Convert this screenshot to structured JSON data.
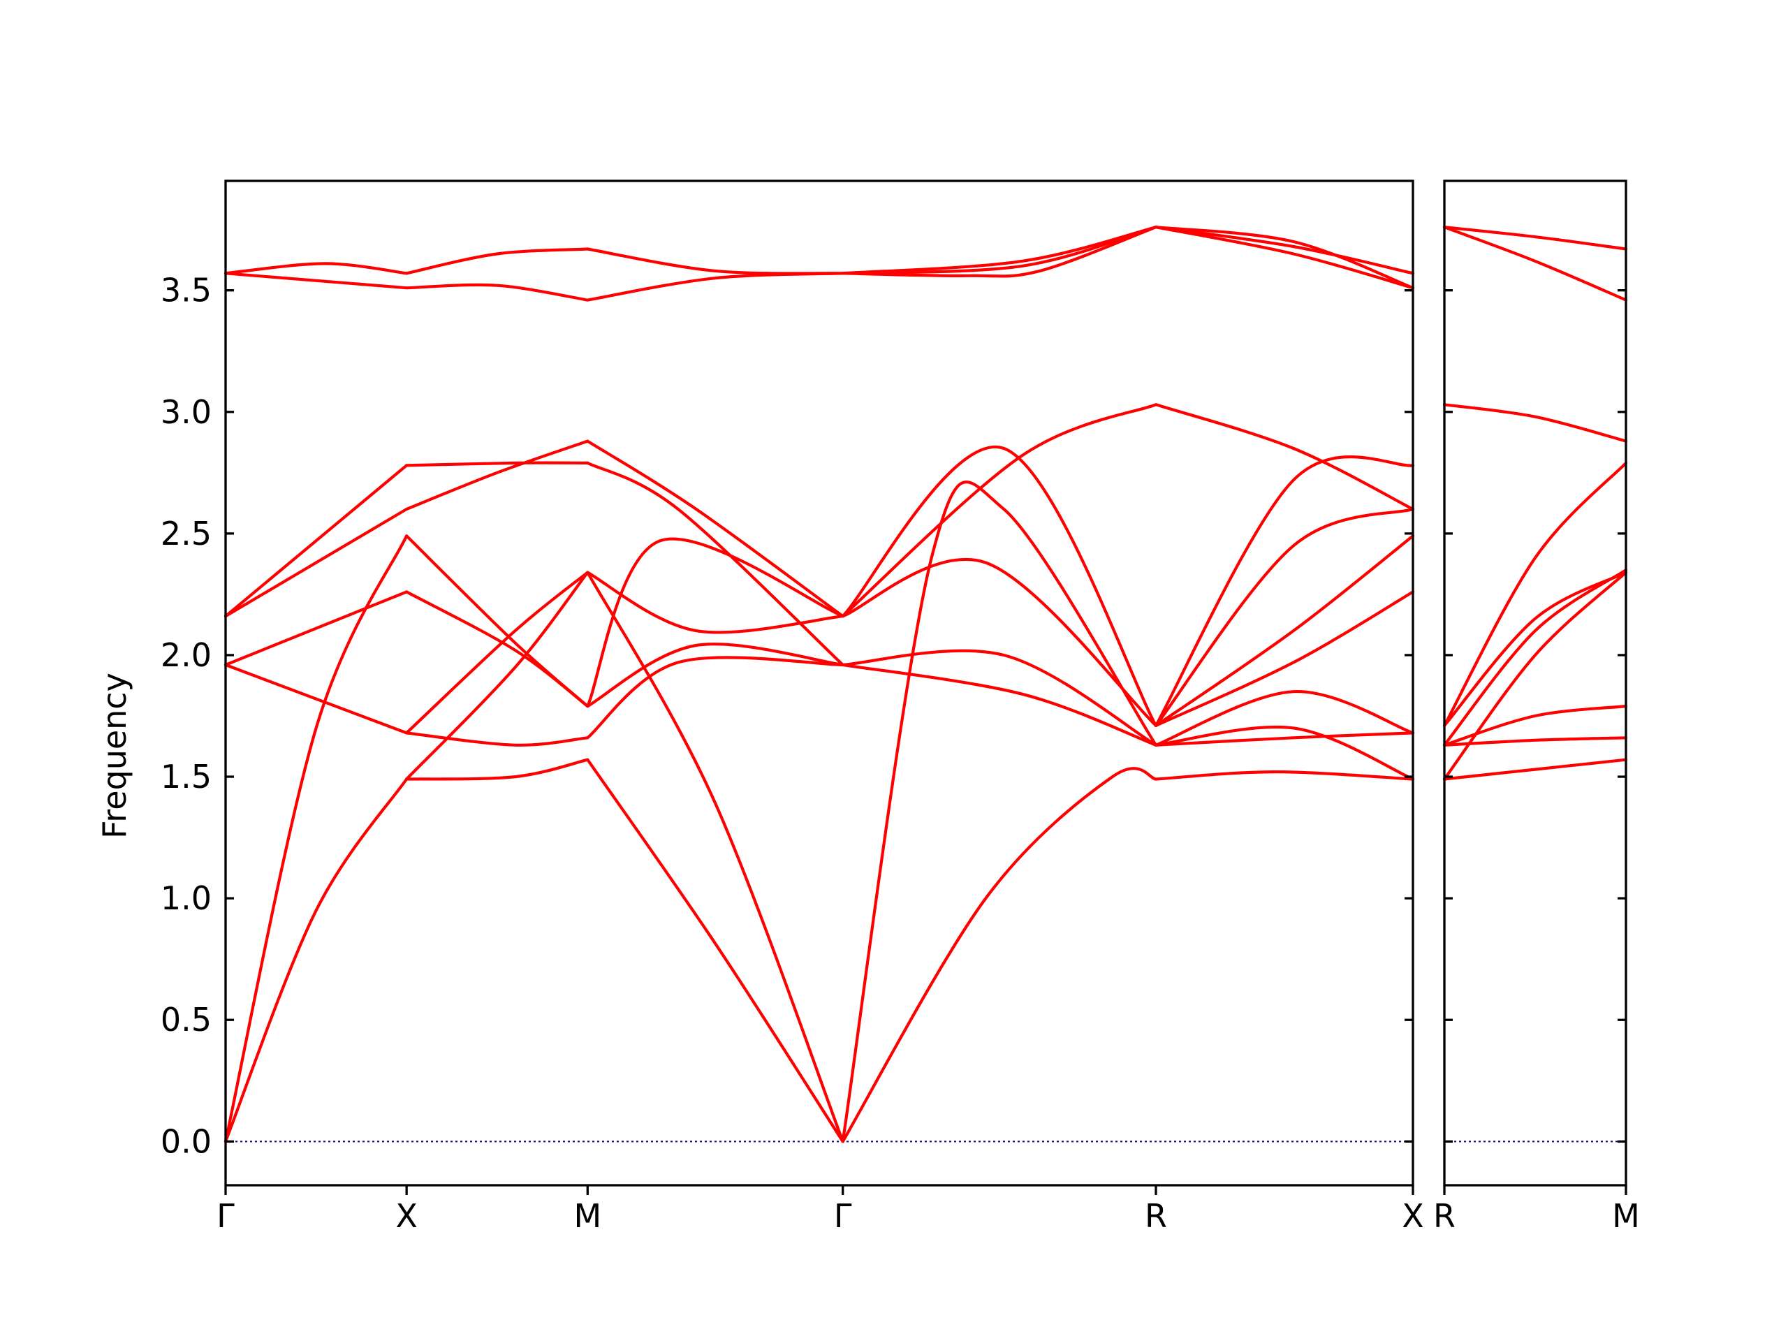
{
  "chart_data": {
    "type": "line",
    "ylabel": "Frequency",
    "ylim": [
      -0.18,
      3.95
    ],
    "yticks": [
      "0.0",
      "0.5",
      "1.0",
      "1.5",
      "2.0",
      "2.5",
      "3.0",
      "3.5"
    ],
    "ytick_values": [
      0.0,
      0.5,
      1.0,
      1.5,
      2.0,
      2.5,
      3.0,
      3.5
    ],
    "colors": {
      "band": "#ff0000",
      "zero_line": "#00008b",
      "axes": "#000000"
    },
    "zero_line": 0.0,
    "panels": [
      {
        "name": "main",
        "xlim": [
          0,
          6.56
        ],
        "ticks": [
          {
            "label": "Γ",
            "x": 0
          },
          {
            "label": "X",
            "x": 1.0
          },
          {
            "label": "M",
            "x": 2.0
          },
          {
            "label": "Γ",
            "x": 3.41
          },
          {
            "label": "R",
            "x": 5.14
          },
          {
            "label": "X",
            "x": 6.56
          }
        ],
        "series": [
          {
            "x": [
              0,
              0.5,
              1.0
            ],
            "y": [
              0,
              0.95,
              1.49
            ]
          },
          {
            "x": [
              0,
              0.5,
              1.0
            ],
            "y": [
              0,
              1.7,
              2.49
            ]
          },
          {
            "x": [
              0,
              1.0
            ],
            "y": [
              1.96,
              1.68
            ]
          },
          {
            "x": [
              0,
              1.0
            ],
            "y": [
              1.96,
              2.26
            ]
          },
          {
            "x": [
              0,
              1.0
            ],
            "y": [
              2.16,
              2.6
            ]
          },
          {
            "x": [
              0,
              1.0
            ],
            "y": [
              2.16,
              2.78
            ]
          },
          {
            "x": [
              0,
              1.0
            ],
            "y": [
              3.57,
              3.51
            ]
          },
          {
            "x": [
              0,
              0.55,
              1.0
            ],
            "y": [
              3.57,
              3.61,
              3.57
            ]
          },
          {
            "x": [
              1.0,
              1.6,
              2.0
            ],
            "y": [
              1.49,
              1.5,
              1.57
            ]
          },
          {
            "x": [
              1.0,
              1.6,
              2.0
            ],
            "y": [
              1.49,
              1.95,
              2.34
            ]
          },
          {
            "x": [
              1.0,
              1.6,
              2.0
            ],
            "y": [
              1.68,
              1.63,
              1.66
            ]
          },
          {
            "x": [
              1.0,
              1.6,
              2.0
            ],
            "y": [
              1.68,
              2.1,
              2.34
            ]
          },
          {
            "x": [
              1.0,
              1.6,
              2.0
            ],
            "y": [
              2.49,
              2.05,
              1.79
            ]
          },
          {
            "x": [
              1.0,
              1.6,
              2.0
            ],
            "y": [
              2.26,
              2.02,
              1.79
            ]
          },
          {
            "x": [
              1.0,
              1.5,
              2.0
            ],
            "y": [
              2.6,
              2.75,
              2.88
            ]
          },
          {
            "x": [
              1.0,
              1.6,
              2.0
            ],
            "y": [
              2.78,
              2.79,
              2.79
            ]
          },
          {
            "x": [
              1.0,
              1.5,
              2.0
            ],
            "y": [
              3.51,
              3.52,
              3.46
            ]
          },
          {
            "x": [
              1.0,
              1.5,
              2.0
            ],
            "y": [
              3.57,
              3.65,
              3.67
            ]
          },
          {
            "x": [
              2.0,
              2.7,
              3.41
            ],
            "y": [
              1.57,
              0.82,
              0
            ]
          },
          {
            "x": [
              2.0,
              2.7,
              3.41
            ],
            "y": [
              2.34,
              1.4,
              0
            ]
          },
          {
            "x": [
              2.0,
              2.5,
              3.41
            ],
            "y": [
              1.66,
              1.97,
              1.96
            ]
          },
          {
            "x": [
              2.0,
              2.6,
              3.41
            ],
            "y": [
              1.79,
              2.04,
              1.96
            ]
          },
          {
            "x": [
              2.0,
              2.4,
              3.41
            ],
            "y": [
              1.79,
              2.47,
              2.16
            ]
          },
          {
            "x": [
              2.0,
              2.6,
              3.41
            ],
            "y": [
              2.34,
              2.1,
              2.16
            ]
          },
          {
            "x": [
              2.0,
              2.6,
              3.41
            ],
            "y": [
              2.88,
              2.6,
              2.16
            ]
          },
          {
            "x": [
              2.0,
              2.5,
              3.41
            ],
            "y": [
              2.79,
              2.6,
              1.96
            ]
          },
          {
            "x": [
              2.0,
              2.7,
              3.41
            ],
            "y": [
              3.46,
              3.55,
              3.57
            ]
          },
          {
            "x": [
              2.0,
              2.7,
              3.41
            ],
            "y": [
              3.67,
              3.58,
              3.57
            ]
          },
          {
            "x": [
              3.41,
              4.2,
              4.9,
              5.14
            ],
            "y": [
              0,
              1.0,
              1.5,
              1.49
            ]
          },
          {
            "x": [
              3.41,
              3.9,
              4.3,
              5.14
            ],
            "y": [
              0,
              2.4,
              2.6,
              1.63
            ]
          },
          {
            "x": [
              3.41,
              4.4,
              5.14
            ],
            "y": [
              1.96,
              1.84,
              1.63
            ]
          },
          {
            "x": [
              3.41,
              4.3,
              5.14
            ],
            "y": [
              1.96,
              2.0,
              1.63
            ]
          },
          {
            "x": [
              3.41,
              4.2,
              5.14
            ],
            "y": [
              2.16,
              2.38,
              1.71
            ]
          },
          {
            "x": [
              3.41,
              4.3,
              5.14
            ],
            "y": [
              2.16,
              2.85,
              1.71
            ]
          },
          {
            "x": [
              3.41,
              4.4,
              5.14
            ],
            "y": [
              3.57,
              3.6,
              3.76
            ]
          },
          {
            "x": [
              3.41,
              4.1,
              4.5,
              5.14
            ],
            "y": [
              3.57,
              3.56,
              3.58,
              3.76
            ]
          },
          {
            "x": [
              3.41,
              4.4,
              5.14
            ],
            "y": [
              3.57,
              3.62,
              3.76
            ]
          },
          {
            "x": [
              3.41,
              4.4,
              5.14
            ],
            "y": [
              2.16,
              2.82,
              3.03
            ]
          },
          {
            "x": [
              5.14,
              5.8,
              6.56
            ],
            "y": [
              1.49,
              1.52,
              1.49
            ]
          },
          {
            "x": [
              5.14,
              5.9,
              6.56
            ],
            "y": [
              1.63,
              1.66,
              1.68
            ]
          },
          {
            "x": [
              5.14,
              5.9,
              6.56
            ],
            "y": [
              1.63,
              1.7,
              1.49
            ]
          },
          {
            "x": [
              5.14,
              5.9,
              6.56
            ],
            "y": [
              1.63,
              1.85,
              1.68
            ]
          },
          {
            "x": [
              5.14,
              5.9,
              6.56
            ],
            "y": [
              1.71,
              2.1,
              2.49
            ]
          },
          {
            "x": [
              5.14,
              5.9,
              6.56
            ],
            "y": [
              1.71,
              1.97,
              2.26
            ]
          },
          {
            "x": [
              5.14,
              5.9,
              6.56
            ],
            "y": [
              1.71,
              2.45,
              2.6
            ]
          },
          {
            "x": [
              5.14,
              5.9,
              6.56
            ],
            "y": [
              1.71,
              2.72,
              2.78
            ]
          },
          {
            "x": [
              5.14,
              5.9,
              6.56
            ],
            "y": [
              3.03,
              2.85,
              2.6
            ]
          },
          {
            "x": [
              5.14,
              5.9,
              6.56
            ],
            "y": [
              3.76,
              3.65,
              3.51
            ]
          },
          {
            "x": [
              5.14,
              5.9,
              6.56
            ],
            "y": [
              3.76,
              3.7,
              3.51
            ]
          },
          {
            "x": [
              5.14,
              5.9,
              6.56
            ],
            "y": [
              3.76,
              3.68,
              3.57
            ]
          }
        ]
      },
      {
        "name": "right",
        "xlim": [
          0,
          1.0
        ],
        "ticks": [
          {
            "label": "R",
            "x": 0
          },
          {
            "label": "M",
            "x": 1.0
          }
        ],
        "series": [
          {
            "x": [
              0,
              0.5,
              1.0
            ],
            "y": [
              1.49,
              1.53,
              1.57
            ]
          },
          {
            "x": [
              0,
              0.5,
              1.0
            ],
            "y": [
              1.63,
              1.65,
              1.66
            ]
          },
          {
            "x": [
              0,
              0.5,
              1.0
            ],
            "y": [
              1.63,
              1.75,
              1.79
            ]
          },
          {
            "x": [
              0,
              0.5,
              1.0
            ],
            "y": [
              1.49,
              2.0,
              2.34
            ]
          },
          {
            "x": [
              0,
              0.5,
              1.0
            ],
            "y": [
              1.63,
              2.1,
              2.35
            ]
          },
          {
            "x": [
              0,
              0.5,
              1.0
            ],
            "y": [
              1.71,
              2.15,
              2.34
            ]
          },
          {
            "x": [
              0,
              0.5,
              1.0
            ],
            "y": [
              1.71,
              2.4,
              2.79
            ]
          },
          {
            "x": [
              0,
              0.5,
              1.0
            ],
            "y": [
              3.03,
              2.98,
              2.88
            ]
          },
          {
            "x": [
              0,
              0.5,
              1.0
            ],
            "y": [
              3.76,
              3.72,
              3.67
            ]
          },
          {
            "x": [
              0,
              0.5,
              1.0
            ],
            "y": [
              3.76,
              3.62,
              3.46
            ]
          }
        ]
      }
    ]
  }
}
